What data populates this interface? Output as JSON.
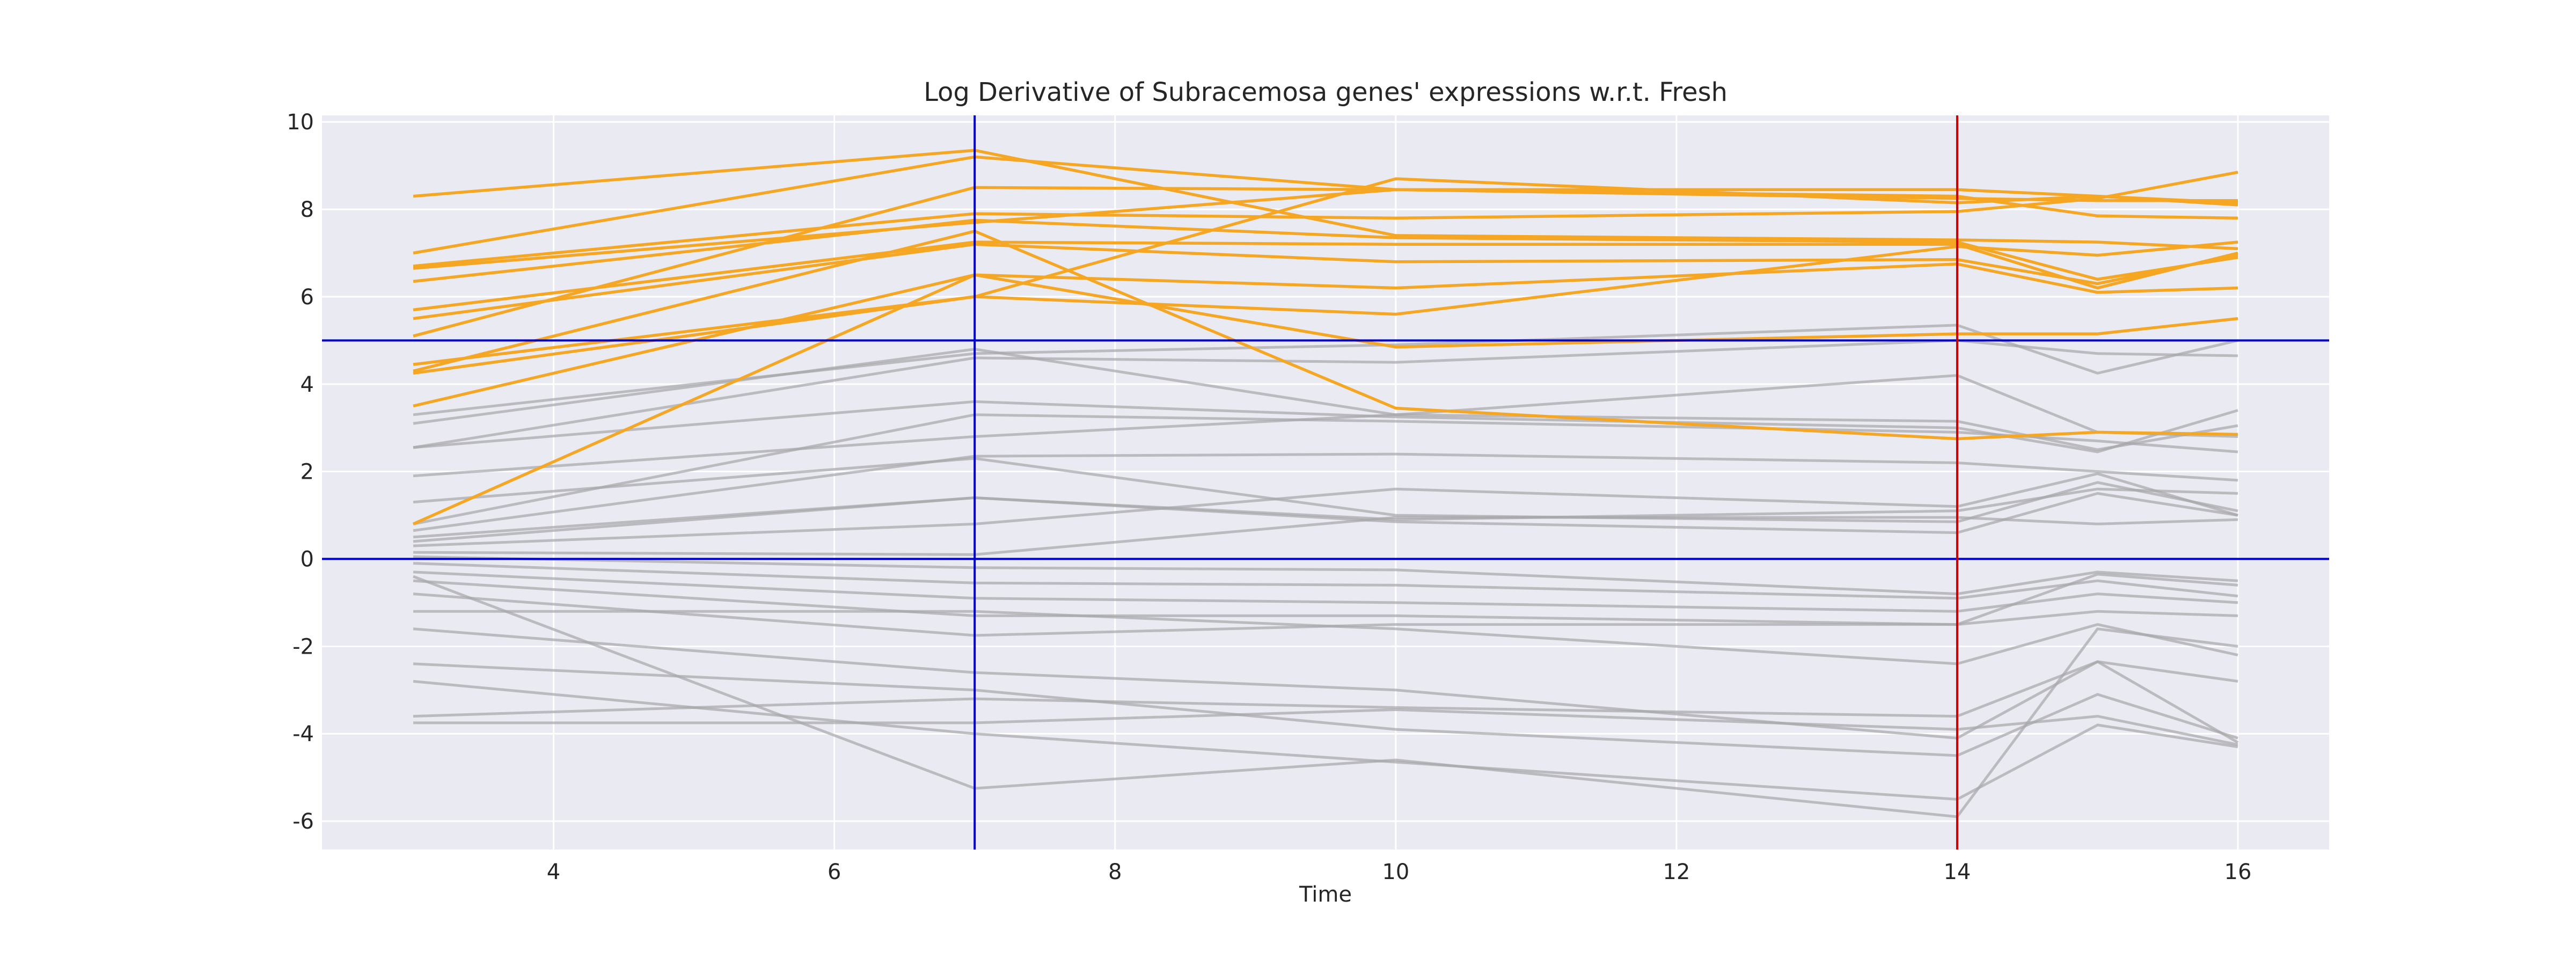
{
  "chart_data": {
    "type": "line",
    "title": "Log Derivative of Subracemosa genes' expressions w.r.t. Fresh",
    "xlabel": "Time",
    "ylabel": "",
    "x": [
      3,
      7,
      10,
      14,
      15,
      16
    ],
    "xlim": [
      2.35,
      16.65
    ],
    "ylim": [
      -6.65,
      10.15
    ],
    "xticks": [
      4,
      6,
      8,
      10,
      12,
      14,
      16
    ],
    "yticks": [
      -6,
      -4,
      -2,
      0,
      2,
      4,
      6,
      8,
      10
    ],
    "grid": true,
    "legend": "none",
    "reference_lines": {
      "horizontal": [
        {
          "y": 0,
          "color": "#0000cc"
        },
        {
          "y": 5,
          "color": "#0000cc"
        }
      ],
      "vertical": [
        {
          "x": 7,
          "color": "#0000cc"
        },
        {
          "x": 14,
          "color": "#cc0000"
        }
      ]
    },
    "colors": {
      "highlighted": "#f5a623",
      "background": "#a6a6aa",
      "plot_bg": "#eaeaf2",
      "grid": "#ffffff"
    },
    "series": [
      {
        "group": "highlighted",
        "values": [
          8.3,
          9.35,
          7.4,
          7.3,
          7.25,
          7.1
        ]
      },
      {
        "group": "highlighted",
        "values": [
          7.0,
          9.2,
          8.45,
          8.45,
          8.3,
          8.15
        ]
      },
      {
        "group": "highlighted",
        "values": [
          6.7,
          7.9,
          7.8,
          7.95,
          8.25,
          8.85
        ]
      },
      {
        "group": "highlighted",
        "values": [
          6.65,
          7.7,
          8.45,
          8.25,
          8.2,
          8.2
        ]
      },
      {
        "group": "highlighted",
        "values": [
          6.35,
          7.75,
          7.35,
          7.25,
          6.4,
          6.9
        ]
      },
      {
        "group": "highlighted",
        "values": [
          5.7,
          7.25,
          7.2,
          7.2,
          6.2,
          7.0
        ]
      },
      {
        "group": "highlighted",
        "values": [
          5.5,
          7.2,
          6.8,
          6.85,
          6.3,
          6.95
        ]
      },
      {
        "group": "highlighted",
        "values": [
          5.1,
          8.5,
          8.45,
          8.3,
          7.85,
          7.8
        ]
      },
      {
        "group": "highlighted",
        "values": [
          4.45,
          6.0,
          8.7,
          8.15,
          8.3,
          8.1
        ]
      },
      {
        "group": "highlighted",
        "values": [
          4.25,
          6.0,
          5.6,
          7.15,
          6.95,
          7.25
        ]
      },
      {
        "group": "highlighted",
        "values": [
          3.5,
          6.5,
          6.2,
          6.75,
          6.1,
          6.2
        ]
      },
      {
        "group": "highlighted",
        "values": [
          0.8,
          6.5,
          4.85,
          5.15,
          5.15,
          5.5
        ]
      },
      {
        "group": "highlighted",
        "values": [
          4.3,
          7.5,
          3.45,
          2.75,
          2.9,
          2.85
        ]
      },
      {
        "group": "background",
        "values": [
          3.3,
          4.7,
          4.9,
          5.35,
          4.25,
          5.0
        ]
      },
      {
        "group": "background",
        "values": [
          3.1,
          4.8,
          3.3,
          4.2,
          2.9,
          2.8
        ]
      },
      {
        "group": "background",
        "values": [
          2.55,
          4.6,
          4.5,
          5.0,
          4.7,
          4.65
        ]
      },
      {
        "group": "background",
        "values": [
          2.55,
          3.6,
          3.25,
          3.0,
          2.45,
          3.4
        ]
      },
      {
        "group": "background",
        "values": [
          1.9,
          2.8,
          3.3,
          3.15,
          2.5,
          3.05
        ]
      },
      {
        "group": "background",
        "values": [
          1.3,
          2.3,
          1.0,
          0.85,
          1.75,
          1.1
        ]
      },
      {
        "group": "background",
        "values": [
          0.8,
          3.3,
          3.15,
          2.9,
          2.7,
          2.45
        ]
      },
      {
        "group": "background",
        "values": [
          0.65,
          2.35,
          2.4,
          2.2,
          2.0,
          1.8
        ]
      },
      {
        "group": "background",
        "values": [
          0.5,
          1.4,
          0.9,
          1.1,
          1.6,
          1.5
        ]
      },
      {
        "group": "background",
        "values": [
          0.4,
          1.4,
          0.85,
          0.6,
          1.5,
          1.0
        ]
      },
      {
        "group": "background",
        "values": [
          0.3,
          0.8,
          1.6,
          1.2,
          1.95,
          1.0
        ]
      },
      {
        "group": "background",
        "values": [
          0.15,
          0.1,
          0.95,
          0.95,
          0.8,
          0.9
        ]
      },
      {
        "group": "background",
        "values": [
          0.05,
          -0.2,
          -0.25,
          -0.8,
          -0.3,
          -0.5
        ]
      },
      {
        "group": "background",
        "values": [
          -0.1,
          -0.55,
          -0.6,
          -0.9,
          -0.5,
          -0.85
        ]
      },
      {
        "group": "background",
        "values": [
          -0.3,
          -0.9,
          -1.0,
          -1.2,
          -0.8,
          -1.0
        ]
      },
      {
        "group": "background",
        "values": [
          -0.5,
          -1.3,
          -1.3,
          -1.5,
          -1.2,
          -1.3
        ]
      },
      {
        "group": "background",
        "values": [
          -0.8,
          -1.75,
          -1.5,
          -1.5,
          -0.35,
          -0.6
        ]
      },
      {
        "group": "background",
        "values": [
          -1.2,
          -1.2,
          -1.6,
          -2.4,
          -1.5,
          -2.2
        ]
      },
      {
        "group": "background",
        "values": [
          -1.6,
          -2.6,
          -3.0,
          -4.1,
          -2.35,
          -4.2
        ]
      },
      {
        "group": "background",
        "values": [
          -2.4,
          -3.0,
          -3.9,
          -4.5,
          -3.1,
          -4.1
        ]
      },
      {
        "group": "background",
        "values": [
          -2.8,
          -4.0,
          -4.65,
          -5.5,
          -3.8,
          -4.3
        ]
      },
      {
        "group": "background",
        "values": [
          -3.6,
          -3.2,
          -3.4,
          -3.6,
          -2.35,
          -2.8
        ]
      },
      {
        "group": "background",
        "values": [
          -3.75,
          -3.75,
          -3.45,
          -3.9,
          -3.6,
          -4.25
        ]
      },
      {
        "group": "background",
        "values": [
          -0.4,
          -5.25,
          -4.6,
          -5.9,
          -1.6,
          -2.0
        ]
      }
    ]
  }
}
